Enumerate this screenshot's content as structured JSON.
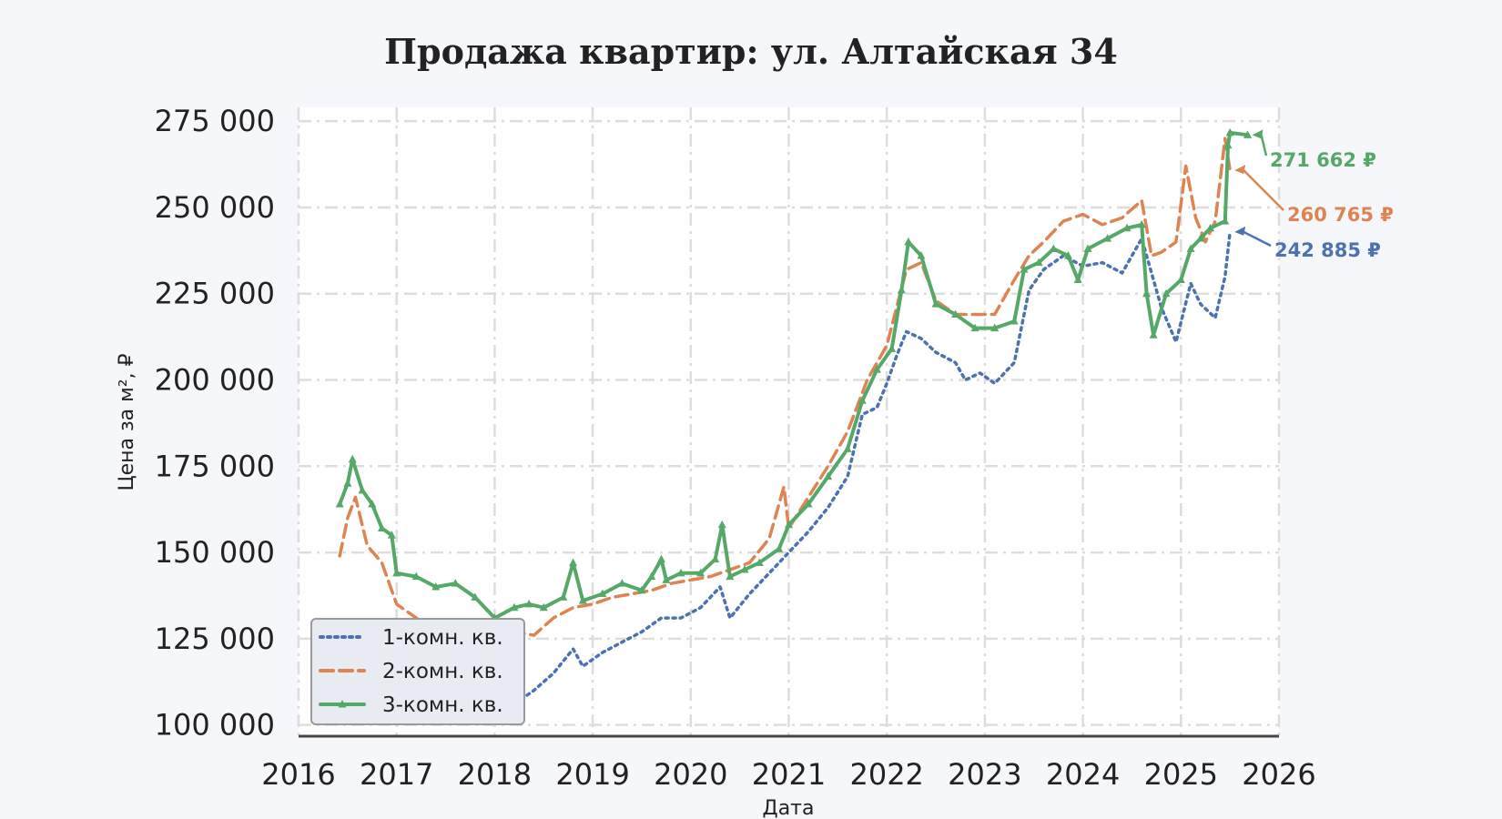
{
  "chart_data": {
    "type": "line",
    "title": "Продажа квартир: ул. Алтайская 34",
    "xlabel": "Дата",
    "ylabel": "Цена за м², ₽",
    "xlim": [
      2016,
      2026
    ],
    "ylim": [
      97000,
      279000
    ],
    "x_ticks": [
      2016,
      2017,
      2018,
      2019,
      2020,
      2021,
      2022,
      2023,
      2024,
      2025,
      2026
    ],
    "x_tick_labels": [
      "2016",
      "2017",
      "2018",
      "2019",
      "2020",
      "2021",
      "2022",
      "2023",
      "2024",
      "2025",
      "2026"
    ],
    "y_ticks": [
      100000,
      125000,
      150000,
      175000,
      200000,
      225000,
      250000,
      275000
    ],
    "y_tick_labels": [
      "100 000",
      "125 000",
      "150 000",
      "175 000",
      "200 000",
      "225 000",
      "250 000",
      "275 000"
    ],
    "grid": true,
    "legend_position": "bottom-left",
    "series": [
      {
        "name": "1-комн. кв.",
        "color": "#4c72b0",
        "style": "dotted",
        "end_label": "242 885 ₽",
        "points": [
          [
            2018.0,
            104000
          ],
          [
            2018.2,
            106000
          ],
          [
            2018.4,
            110000
          ],
          [
            2018.6,
            115000
          ],
          [
            2018.8,
            122000
          ],
          [
            2018.9,
            117000
          ],
          [
            2019.1,
            121000
          ],
          [
            2019.3,
            124000
          ],
          [
            2019.5,
            127000
          ],
          [
            2019.7,
            131000
          ],
          [
            2019.9,
            131000
          ],
          [
            2020.1,
            134000
          ],
          [
            2020.3,
            140000
          ],
          [
            2020.4,
            131000
          ],
          [
            2020.6,
            138000
          ],
          [
            2020.8,
            144000
          ],
          [
            2021.0,
            150000
          ],
          [
            2021.2,
            156000
          ],
          [
            2021.4,
            163000
          ],
          [
            2021.6,
            172000
          ],
          [
            2021.75,
            190000
          ],
          [
            2021.9,
            192000
          ],
          [
            2022.0,
            199000
          ],
          [
            2022.1,
            207000
          ],
          [
            2022.2,
            214000
          ],
          [
            2022.35,
            212000
          ],
          [
            2022.5,
            208000
          ],
          [
            2022.7,
            205000
          ],
          [
            2022.8,
            200000
          ],
          [
            2022.95,
            202000
          ],
          [
            2023.1,
            199000
          ],
          [
            2023.3,
            205000
          ],
          [
            2023.45,
            226000
          ],
          [
            2023.6,
            232000
          ],
          [
            2023.8,
            236000
          ],
          [
            2024.0,
            233000
          ],
          [
            2024.2,
            234000
          ],
          [
            2024.4,
            231000
          ],
          [
            2024.6,
            241000
          ],
          [
            2024.8,
            221000
          ],
          [
            2024.95,
            211000
          ],
          [
            2025.1,
            228000
          ],
          [
            2025.2,
            222000
          ],
          [
            2025.35,
            218000
          ],
          [
            2025.45,
            230000
          ],
          [
            2025.5,
            242885
          ]
        ]
      },
      {
        "name": "2-комн. кв.",
        "color": "#dd8452",
        "style": "dashed",
        "end_label": "260 765 ₽",
        "points": [
          [
            2016.42,
            149000
          ],
          [
            2016.5,
            160000
          ],
          [
            2016.58,
            166000
          ],
          [
            2016.7,
            152000
          ],
          [
            2016.85,
            147000
          ],
          [
            2017.0,
            135000
          ],
          [
            2017.2,
            131000
          ],
          [
            2017.4,
            127000
          ],
          [
            2017.6,
            129000
          ],
          [
            2017.8,
            127000
          ],
          [
            2018.0,
            129000
          ],
          [
            2018.2,
            127000
          ],
          [
            2018.4,
            126000
          ],
          [
            2018.6,
            131000
          ],
          [
            2018.8,
            134000
          ],
          [
            2019.0,
            135000
          ],
          [
            2019.2,
            137000
          ],
          [
            2019.4,
            138000
          ],
          [
            2019.6,
            139000
          ],
          [
            2019.8,
            141000
          ],
          [
            2020.0,
            142000
          ],
          [
            2020.2,
            143000
          ],
          [
            2020.4,
            145000
          ],
          [
            2020.6,
            147000
          ],
          [
            2020.8,
            154000
          ],
          [
            2020.95,
            169000
          ],
          [
            2021.0,
            157000
          ],
          [
            2021.2,
            166000
          ],
          [
            2021.4,
            175000
          ],
          [
            2021.6,
            185000
          ],
          [
            2021.8,
            200000
          ],
          [
            2022.0,
            210000
          ],
          [
            2022.2,
            232000
          ],
          [
            2022.35,
            234000
          ],
          [
            2022.5,
            223000
          ],
          [
            2022.7,
            219000
          ],
          [
            2022.9,
            219000
          ],
          [
            2023.1,
            219000
          ],
          [
            2023.3,
            229000
          ],
          [
            2023.45,
            236000
          ],
          [
            2023.6,
            240000
          ],
          [
            2023.8,
            246000
          ],
          [
            2024.0,
            248000
          ],
          [
            2024.2,
            245000
          ],
          [
            2024.4,
            247000
          ],
          [
            2024.6,
            252000
          ],
          [
            2024.7,
            236000
          ],
          [
            2024.8,
            237000
          ],
          [
            2024.95,
            240000
          ],
          [
            2025.05,
            262000
          ],
          [
            2025.15,
            247000
          ],
          [
            2025.25,
            240000
          ],
          [
            2025.35,
            246000
          ],
          [
            2025.45,
            270000
          ],
          [
            2025.5,
            260765
          ]
        ]
      },
      {
        "name": "3-комн. кв.",
        "color": "#55a868",
        "style": "solid",
        "end_label": "271 662 ₽",
        "points": [
          [
            2016.42,
            164000
          ],
          [
            2016.5,
            170000
          ],
          [
            2016.55,
            177000
          ],
          [
            2016.65,
            168000
          ],
          [
            2016.75,
            164000
          ],
          [
            2016.85,
            157000
          ],
          [
            2016.95,
            155000
          ],
          [
            2017.0,
            144000
          ],
          [
            2017.2,
            143000
          ],
          [
            2017.4,
            140000
          ],
          [
            2017.6,
            141000
          ],
          [
            2017.8,
            137000
          ],
          [
            2018.0,
            131000
          ],
          [
            2018.2,
            134000
          ],
          [
            2018.35,
            135000
          ],
          [
            2018.5,
            134000
          ],
          [
            2018.7,
            137000
          ],
          [
            2018.8,
            147000
          ],
          [
            2018.9,
            136000
          ],
          [
            2019.1,
            138000
          ],
          [
            2019.3,
            141000
          ],
          [
            2019.5,
            139000
          ],
          [
            2019.6,
            143000
          ],
          [
            2019.7,
            148000
          ],
          [
            2019.75,
            142000
          ],
          [
            2019.9,
            144000
          ],
          [
            2020.1,
            144000
          ],
          [
            2020.25,
            148000
          ],
          [
            2020.32,
            158000
          ],
          [
            2020.4,
            143000
          ],
          [
            2020.55,
            145000
          ],
          [
            2020.7,
            147000
          ],
          [
            2020.9,
            151000
          ],
          [
            2021.0,
            158000
          ],
          [
            2021.2,
            164000
          ],
          [
            2021.4,
            172000
          ],
          [
            2021.6,
            180000
          ],
          [
            2021.75,
            194000
          ],
          [
            2021.9,
            203000
          ],
          [
            2022.05,
            209000
          ],
          [
            2022.15,
            226000
          ],
          [
            2022.22,
            240000
          ],
          [
            2022.35,
            236000
          ],
          [
            2022.5,
            222000
          ],
          [
            2022.7,
            219000
          ],
          [
            2022.9,
            215000
          ],
          [
            2023.1,
            215000
          ],
          [
            2023.3,
            217000
          ],
          [
            2023.4,
            232000
          ],
          [
            2023.55,
            234000
          ],
          [
            2023.7,
            238000
          ],
          [
            2023.85,
            236000
          ],
          [
            2023.95,
            229000
          ],
          [
            2024.05,
            238000
          ],
          [
            2024.25,
            241000
          ],
          [
            2024.45,
            244000
          ],
          [
            2024.6,
            245000
          ],
          [
            2024.65,
            225000
          ],
          [
            2024.72,
            213000
          ],
          [
            2024.85,
            225000
          ],
          [
            2025.0,
            229000
          ],
          [
            2025.1,
            238000
          ],
          [
            2025.2,
            241000
          ],
          [
            2025.3,
            244000
          ],
          [
            2025.45,
            246000
          ],
          [
            2025.48,
            268000
          ],
          [
            2025.5,
            271662
          ],
          [
            2025.68,
            271000
          ]
        ]
      }
    ]
  }
}
